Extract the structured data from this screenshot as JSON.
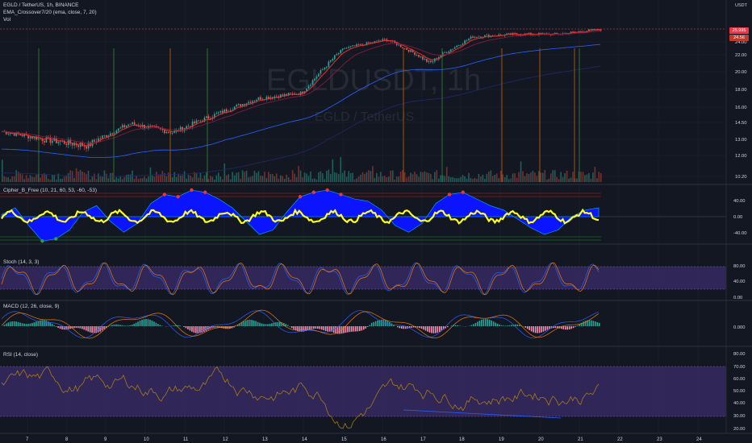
{
  "header": {
    "symbol_line": "EGLD / TetherUS, 1h, BINANCE",
    "indicator_ema": "EMA_Crossover7/20 (ema, close, 7, 20)",
    "indicator_vol": "Vol",
    "currency": "USDT"
  },
  "watermark": {
    "ticker": "EGLDUSDT, 1h",
    "name": "EGLD / TetherUS"
  },
  "badges": {
    "last_price": "25.995",
    "ema_value": "24.56",
    "last_color": "#f23645",
    "ema_color": "#f23645"
  },
  "colors": {
    "up": "#26a69a",
    "down": "#ef5350",
    "ema_fast": "#ef2b2b",
    "ema_slow": "#7a1c3a",
    "long_ma": "#2962ff",
    "cipher_blue": "#0a14ff",
    "cipher_yellow": "#ffff1a",
    "stoch_band": "#3b2d6b",
    "rsi_band": "#3b2d6b"
  },
  "panes": {
    "cipher": {
      "label": "Cipher_B_Free (10, 21, 60, 53, -60, -53)"
    },
    "stoch": {
      "label": "Stoch (14, 3, 3)"
    },
    "macd": {
      "label": "MACD (12, 26, close, 9)"
    },
    "rsi": {
      "label": "RSI (14, close)"
    }
  },
  "chart_data": [
    {
      "type": "line",
      "name": "price",
      "x": [
        "7",
        "8",
        "9",
        "10",
        "11",
        "12",
        "13",
        "14",
        "15",
        "16",
        "17",
        "18",
        "19",
        "20",
        "21"
      ],
      "ohlc_close": [
        13.7,
        13.0,
        12.6,
        14.4,
        13.6,
        15.3,
        17.0,
        17.6,
        23.0,
        24.4,
        21.0,
        24.8,
        25.2,
        25.2,
        25.99
      ],
      "series": [
        {
          "name": "EMA 7",
          "values": [
            13.6,
            13.1,
            12.8,
            14.1,
            13.8,
            15.0,
            16.8,
            17.5,
            22.2,
            24.0,
            21.6,
            24.6,
            25.0,
            25.1,
            25.8
          ]
        },
        {
          "name": "EMA 20",
          "values": [
            13.5,
            13.3,
            12.9,
            13.7,
            13.9,
            14.6,
            16.2,
            17.2,
            21.0,
            23.6,
            22.2,
            24.0,
            24.9,
            25.0,
            25.4
          ]
        }
      ],
      "y_ticks": [
        "26.00",
        "24.00",
        "22.00",
        "20.00",
        "18.00",
        "16.00",
        "14.50",
        "13.00",
        "12.00",
        "10.20"
      ],
      "x_ticks": [
        "7",
        "8",
        "9",
        "10",
        "11",
        "12",
        "13",
        "14",
        "15",
        "16",
        "17",
        "18",
        "19",
        "20",
        "21",
        "22",
        "23",
        "24"
      ]
    },
    {
      "type": "area",
      "name": "Cipher_B_Free",
      "y_ticks": [
        "40.00",
        "0.00",
        "-40.00"
      ],
      "values": [
        5,
        20,
        -20,
        -55,
        -50,
        -30,
        10,
        25,
        -10,
        -35,
        -15,
        30,
        50,
        45,
        60,
        55,
        40,
        20,
        -10,
        -40,
        -30,
        10,
        45,
        55,
        60,
        50,
        40,
        35,
        15,
        -20,
        -35,
        -15,
        30,
        50,
        55,
        40,
        25,
        15,
        -5,
        -25,
        -40,
        -30,
        0,
        15,
        20
      ]
    },
    {
      "type": "line",
      "name": "Stoch",
      "y_ticks": [
        "80.00",
        "40.00",
        "0.00"
      ],
      "band": [
        20,
        80
      ]
    },
    {
      "type": "bar",
      "name": "MACD",
      "y_ticks": [
        "0.000"
      ]
    },
    {
      "type": "line",
      "name": "RSI",
      "y_ticks": [
        "80.00",
        "70.00",
        "60.00",
        "50.00",
        "40.00",
        "30.00",
        "20.00"
      ],
      "band": [
        30,
        70
      ]
    }
  ]
}
